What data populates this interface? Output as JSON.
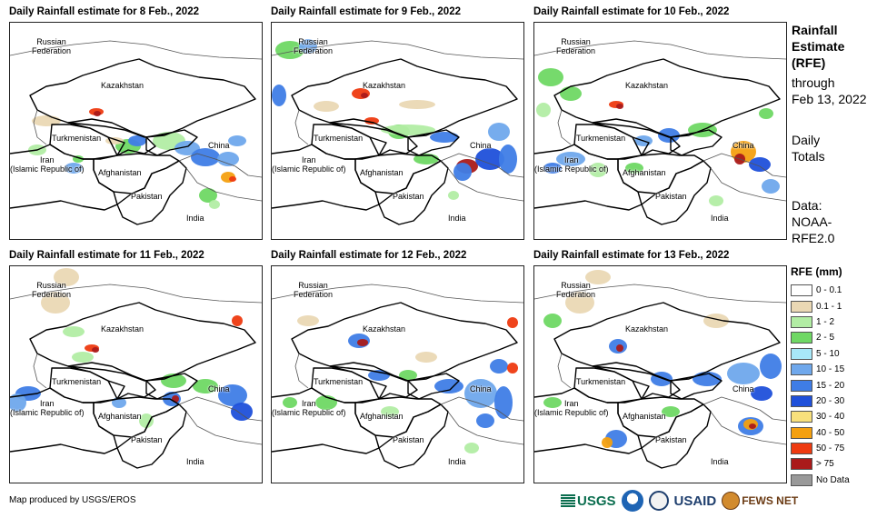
{
  "panels": [
    {
      "title": "Daily Rainfall estimate for 8 Feb., 2022",
      "day": 8
    },
    {
      "title": "Daily Rainfall estimate for 9 Feb., 2022",
      "day": 9
    },
    {
      "title": "Daily Rainfall estimate for 10 Feb., 2022",
      "day": 10
    },
    {
      "title": "Daily Rainfall estimate for 11 Feb., 2022",
      "day": 11
    },
    {
      "title": "Daily Rainfall estimate for 12 Feb., 2022",
      "day": 12
    },
    {
      "title": "Daily Rainfall estimate for 13 Feb., 2022",
      "day": 13
    }
  ],
  "map_labels": {
    "russia": "Russian\nFederation",
    "kazakhstan": "Kazakhstan",
    "turkmenistan": "Turkmenistan",
    "iran": "Iran\n(Islamic Republic of)",
    "afghanistan": "Afghanistan",
    "pakistan": "Pakistan",
    "china": "China",
    "india": "India"
  },
  "side_info": {
    "title_line1": "Rainfall",
    "title_line2": "Estimate",
    "title_line3": "(RFE)",
    "through_line1": "through",
    "through_line2": "Feb 13, 2022",
    "totals_line1": "Daily",
    "totals_line2": "Totals",
    "data_line1": "Data:",
    "data_line2": "NOAA-",
    "data_line3": "RFE2.0"
  },
  "legend": {
    "title": "RFE (mm)",
    "items": [
      {
        "label": "0 - 0.1",
        "color": "#ffffff"
      },
      {
        "label": "0.1 - 1",
        "color": "#ead8b4"
      },
      {
        "label": "1 - 2",
        "color": "#b2eda4"
      },
      {
        "label": "2 - 5",
        "color": "#6fd864"
      },
      {
        "label": "5 - 10",
        "color": "#a8e8f8"
      },
      {
        "label": "10 - 15",
        "color": "#6fa8ec"
      },
      {
        "label": "15 - 20",
        "color": "#3f7de6"
      },
      {
        "label": "20 - 30",
        "color": "#1f50da"
      },
      {
        "label": "30 - 40",
        "color": "#f8e07c"
      },
      {
        "label": "40 - 50",
        "color": "#f4a010"
      },
      {
        "label": "50 - 75",
        "color": "#ee3a10"
      },
      {
        "label": "> 75",
        "color": "#aa1a1a"
      },
      {
        "label": "No Data",
        "color": "#999999"
      }
    ]
  },
  "credit": "Map produced by USGS/EROS",
  "logos": {
    "usgs": "USGS",
    "usaid": "USAID",
    "fews": "FEWS NET"
  }
}
